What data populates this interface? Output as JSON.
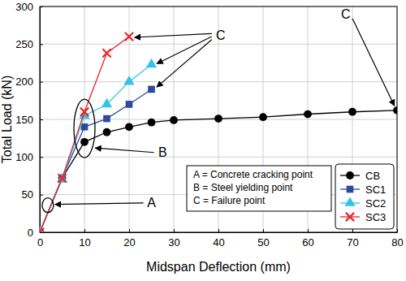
{
  "chart_data": {
    "type": "line",
    "x_label": "Midspan Deflection (mm)",
    "y_label": "Total Load (kN)",
    "xlim": [
      0,
      80
    ],
    "xticks": [
      0,
      10,
      20,
      30,
      40,
      50,
      60,
      70,
      80
    ],
    "ylim": [
      0,
      300
    ],
    "yticks": [
      0,
      50,
      100,
      150,
      200,
      250,
      300
    ],
    "grid": true,
    "legend": "lower right",
    "annotations": [
      "A",
      "B",
      "C",
      "C"
    ],
    "key": [
      "A = Concrete cracking point",
      "B = Steel yielding point",
      "C = Failure point"
    ],
    "series": [
      {
        "name": "CB",
        "color": "#000000",
        "marker": "circle",
        "x": [
          0,
          5,
          10,
          15,
          20,
          25,
          30,
          40,
          50,
          60,
          70,
          80
        ],
        "values": [
          0,
          72,
          120,
          133,
          140,
          146,
          149,
          151,
          153,
          157,
          160,
          162
        ]
      },
      {
        "name": "SC1",
        "color": "#2e4a9e",
        "marker": "square",
        "x": [
          0,
          5,
          10,
          15,
          20,
          25
        ],
        "values": [
          0,
          72,
          140,
          151,
          170,
          190
        ]
      },
      {
        "name": "SC2",
        "color": "#33c3e8",
        "marker": "triangle",
        "x": [
          0,
          5,
          10,
          15,
          20,
          25
        ],
        "values": [
          0,
          70,
          155,
          170,
          200,
          223
        ]
      },
      {
        "name": "SC3",
        "color": "#e8262b",
        "marker": "x",
        "x": [
          0,
          5,
          10,
          15,
          20
        ],
        "values": [
          0,
          72,
          160,
          238,
          260
        ]
      }
    ]
  }
}
